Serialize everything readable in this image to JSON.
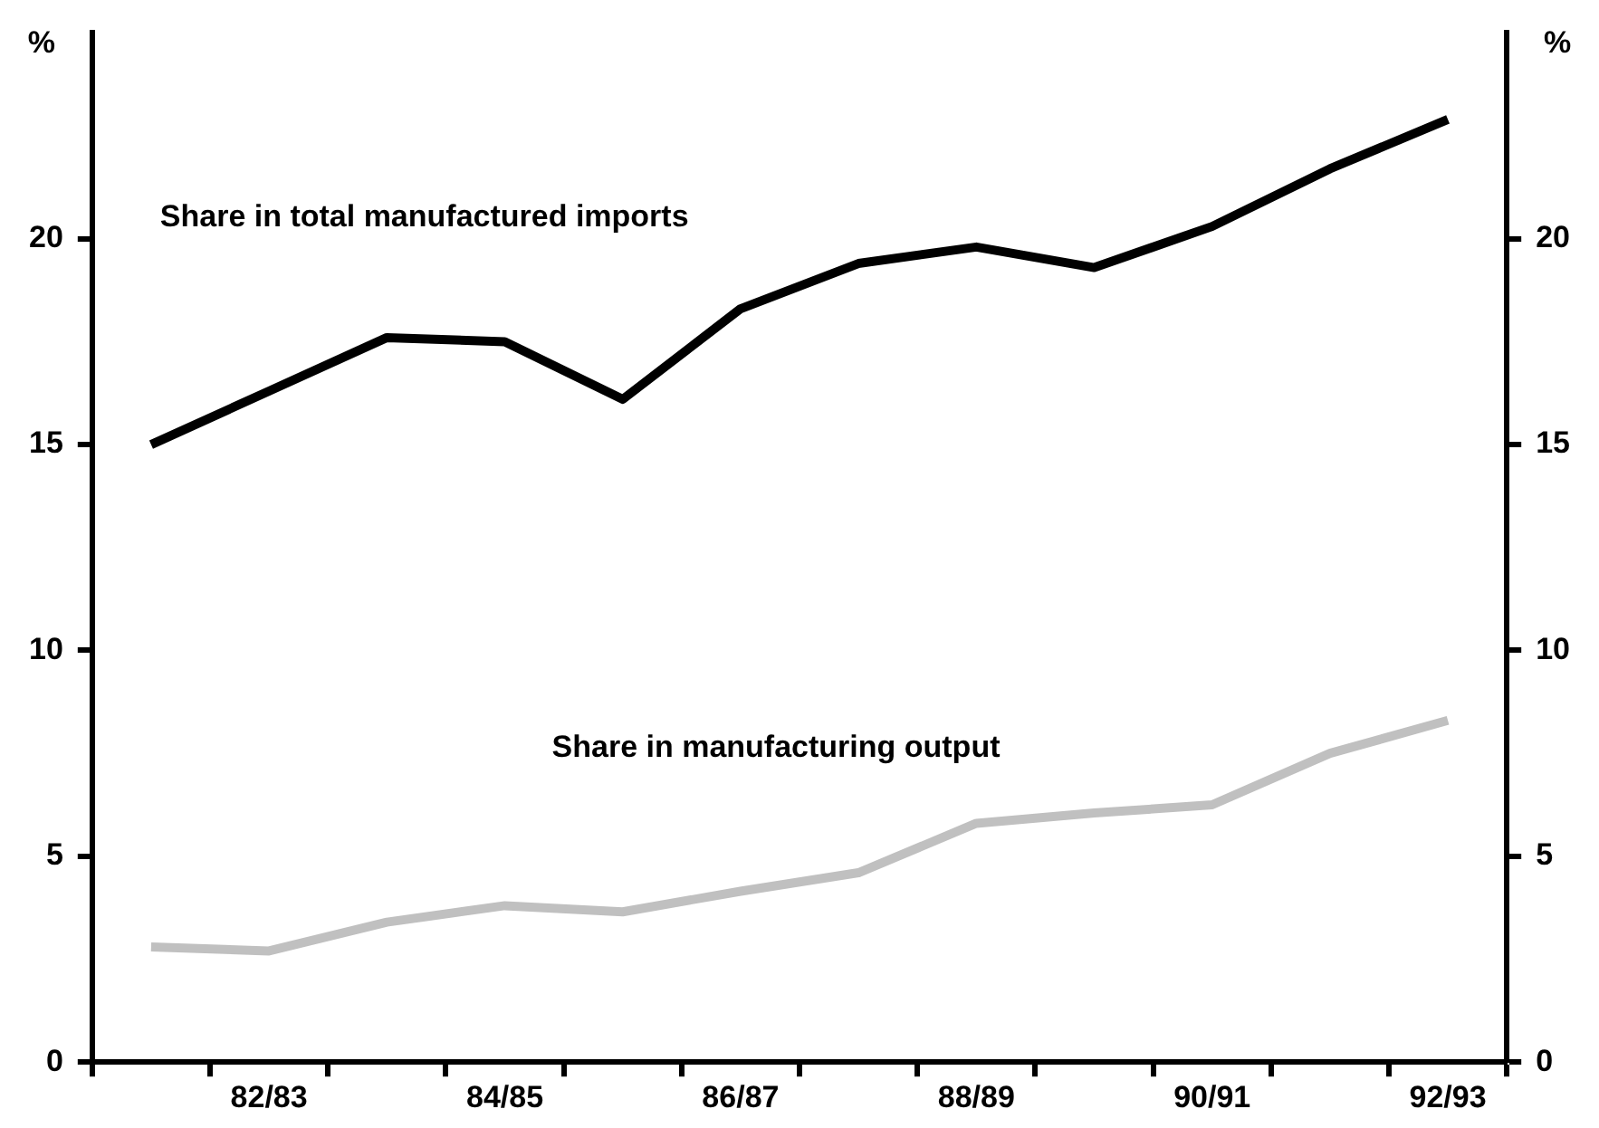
{
  "chart_data": {
    "type": "line",
    "ylabel": "%",
    "y2label": "%",
    "categories": [
      null,
      "82/83",
      null,
      "84/85",
      null,
      "86/87",
      null,
      "88/89",
      null,
      "90/91",
      null,
      "92/93"
    ],
    "series": [
      {
        "name": "Share in total manufactured imports",
        "color": "#000000",
        "values": [
          15.0,
          16.3,
          17.6,
          17.5,
          16.1,
          18.3,
          19.4,
          19.8,
          19.3,
          20.3,
          21.7,
          22.9
        ]
      },
      {
        "name": "Share in manufacturing output",
        "color": "#c0c0c0",
        "values": [
          2.8,
          2.7,
          3.4,
          3.8,
          3.65,
          4.15,
          4.6,
          5.8,
          6.05,
          6.25,
          7.5,
          8.3
        ]
      }
    ],
    "ylim": [
      0,
      25
    ],
    "yticks": [
      0,
      5,
      10,
      15,
      20
    ],
    "y2lim": [
      0,
      25
    ],
    "y2ticks": [
      0,
      5,
      10,
      15,
      20
    ],
    "grid": false,
    "legend": false,
    "marker": "none",
    "line_style": "solid"
  }
}
